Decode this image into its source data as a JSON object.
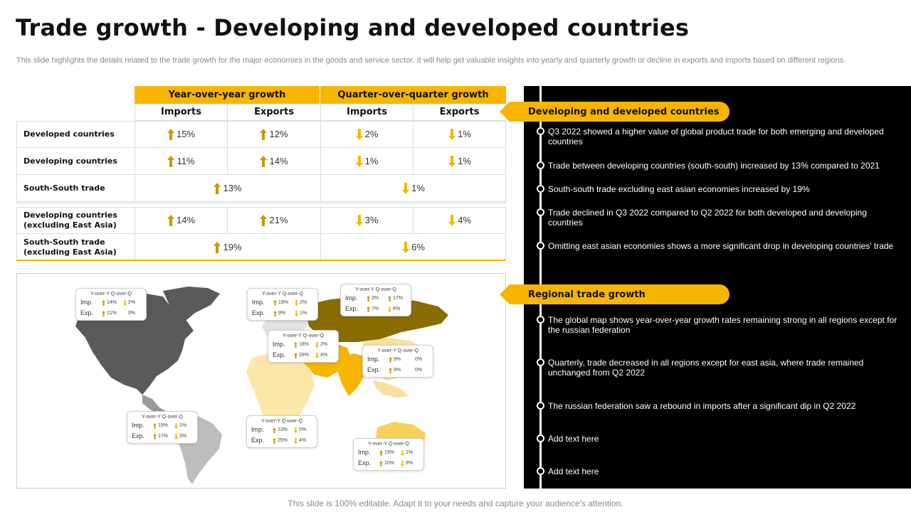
{
  "title": "Trade growth - Developing and developed countries",
  "subtitle": "This slide highlights the details related to the trade growth for the major economies in the goods and service sector. It will help get valuable insights into yearly and quarterly growth or decline in exports and imports based on different regions.",
  "colors": {
    "accent": "#f7b500",
    "up": "#c99700",
    "down": "#f7b500",
    "panel": "#000000"
  },
  "table": {
    "group_headers": [
      "Year-over-year growth",
      "Quarter-over-quarter growth"
    ],
    "sub_headers": [
      "Imports",
      "Exports",
      "Imports",
      "Exports"
    ],
    "rows": [
      {
        "label": "Developed countries",
        "cells": [
          {
            "dir": "up",
            "value": "15%"
          },
          {
            "dir": "up",
            "value": "12%"
          },
          {
            "dir": "down",
            "value": "2%"
          },
          {
            "dir": "down",
            "value": "1%"
          }
        ]
      },
      {
        "label": "Developing countries",
        "cells": [
          {
            "dir": "up",
            "value": "11%"
          },
          {
            "dir": "up",
            "value": "14%"
          },
          {
            "dir": "down",
            "value": "1%"
          },
          {
            "dir": "down",
            "value": "1%"
          }
        ]
      },
      {
        "label": "South-South trade",
        "merged": [
          {
            "dir": "up",
            "value": "13%"
          },
          {
            "dir": "down",
            "value": "1%"
          }
        ]
      },
      {
        "label": "Developing countries",
        "label2": "(excluding East Asia)",
        "cells": [
          {
            "dir": "up",
            "value": "14%"
          },
          {
            "dir": "up",
            "value": "21%"
          },
          {
            "dir": "down",
            "value": "3%"
          },
          {
            "dir": "down",
            "value": "4%"
          }
        ]
      },
      {
        "label": "South-South trade",
        "label2": "(excluding East Asia)",
        "merged": [
          {
            "dir": "up",
            "value": "19%"
          },
          {
            "dir": "down",
            "value": "6%"
          }
        ]
      }
    ]
  },
  "map": {
    "callout_header": "Y-over-Y  Q-over-Q",
    "imp_label": "Imp.",
    "exp_label": "Exp.",
    "callouts": [
      {
        "region": "north-america",
        "imp": [
          "14%",
          "2%"
        ],
        "exp": [
          "21%",
          "0%"
        ],
        "imp_dir": [
          "up",
          "down"
        ],
        "exp_dir": [
          "up",
          "none"
        ]
      },
      {
        "region": "europe",
        "imp": [
          "19%",
          "2%"
        ],
        "exp": [
          "9%",
          "1%"
        ],
        "imp_dir": [
          "up",
          "down"
        ],
        "exp_dir": [
          "up",
          "down"
        ]
      },
      {
        "region": "russia",
        "imp": [
          "3%",
          "17%"
        ],
        "exp": [
          "7%",
          "6%"
        ],
        "imp_dir": [
          "up",
          "up"
        ],
        "exp_dir": [
          "up",
          "down"
        ]
      },
      {
        "region": "middle-east",
        "imp": [
          "18%",
          "2%"
        ],
        "exp": [
          "28%",
          "4%"
        ],
        "imp_dir": [
          "up",
          "down"
        ],
        "exp_dir": [
          "up",
          "down"
        ]
      },
      {
        "region": "east-asia",
        "imp": [
          "9%",
          "0%"
        ],
        "exp": [
          "9%",
          "0%"
        ],
        "imp_dir": [
          "up",
          "none"
        ],
        "exp_dir": [
          "up",
          "none"
        ]
      },
      {
        "region": "south-america",
        "imp": [
          "19%",
          "1%"
        ],
        "exp": [
          "17%",
          "3%"
        ],
        "imp_dir": [
          "up",
          "down"
        ],
        "exp_dir": [
          "up",
          "down"
        ]
      },
      {
        "region": "africa",
        "imp": [
          "13%",
          "5%"
        ],
        "exp": [
          "25%",
          "4%"
        ],
        "imp_dir": [
          "up",
          "down"
        ],
        "exp_dir": [
          "up",
          "down"
        ]
      },
      {
        "region": "oceania",
        "imp": [
          "19%",
          "1%"
        ],
        "exp": [
          "10%",
          "8%"
        ],
        "imp_dir": [
          "up",
          "down"
        ],
        "exp_dir": [
          "up",
          "down"
        ]
      }
    ]
  },
  "panel": {
    "section1_title": "Developing and developed countries",
    "section1_points": [
      "Q3 2022 showed a higher value of global product trade for both emerging and developed countries",
      "Trade between developing countries (south-south) increased by 13% compared to 2021",
      "South-south trade excluding east asian economies increased by 19%",
      "Trade declined in Q3 2022 compared to Q2 2022 for both developed and developing countries",
      "Omitting east asian economies shows a more significant drop in developing countries' trade"
    ],
    "section2_title": "Regional trade growth",
    "section2_points": [
      "The global map shows year-over-year growth rates remaining strong in all regions except for the russian federation",
      "Quarterly, trade decreased in all regions except for east asia, where trade remained unchanged from Q2 2022",
      "The russian federation saw a rebound in imports after a significant dip in Q2 2022",
      "Add text here",
      "Add text here"
    ]
  },
  "footer": "This slide is 100% editable. Adapt it to your needs and capture your audience's attention."
}
